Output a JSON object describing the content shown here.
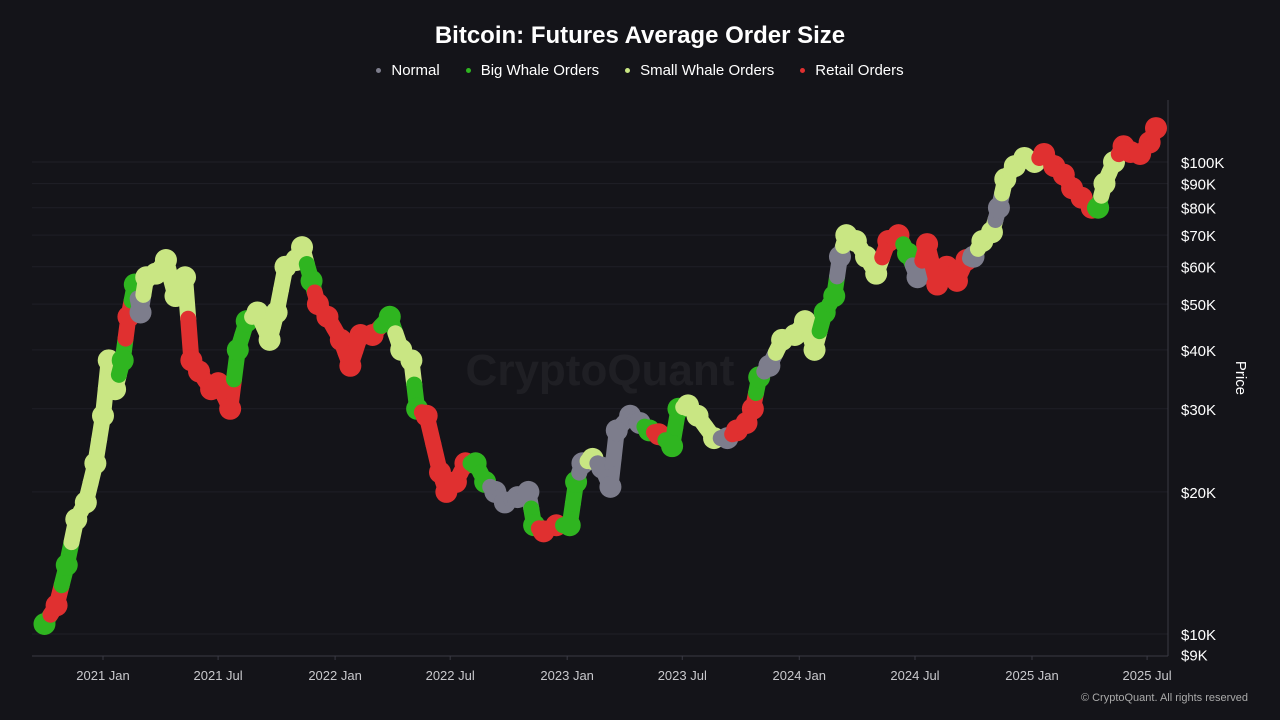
{
  "chart_data": {
    "type": "scatter",
    "title": "Bitcoin: Futures Average Order Size",
    "ylabel": "Price",
    "yscale": "log",
    "ylim": [
      9000,
      135000
    ],
    "xlim": [
      "2020-09-25",
      "2025-07-25"
    ],
    "grid": true,
    "legend_position": "top",
    "x_ticks": [
      "2021 Jan",
      "2021 Jul",
      "2022 Jan",
      "2022 Jul",
      "2023 Jan",
      "2023 Jul",
      "2024 Jan",
      "2024 Jul",
      "2025 Jan",
      "2025 Jul"
    ],
    "x_tick_dates": [
      "2021-01-01",
      "2021-07-01",
      "2022-01-01",
      "2022-07-01",
      "2023-01-01",
      "2023-07-01",
      "2024-01-01",
      "2024-07-01",
      "2025-01-01",
      "2025-07-01"
    ],
    "y_ticks": [
      {
        "label": "$100K",
        "value": 100000
      },
      {
        "label": "$90K",
        "value": 90000
      },
      {
        "label": "$80K",
        "value": 80000
      },
      {
        "label": "$70K",
        "value": 70000
      },
      {
        "label": "$60K",
        "value": 60000
      },
      {
        "label": "$50K",
        "value": 50000
      },
      {
        "label": "$40K",
        "value": 40000
      },
      {
        "label": "$30K",
        "value": 30000
      },
      {
        "label": "$20K",
        "value": 20000
      },
      {
        "label": "$10K",
        "value": 10000
      },
      {
        "label": "$9K",
        "value": 9000
      }
    ],
    "series": [
      {
        "key": "N",
        "name": "Normal",
        "color": "#7d7d8c"
      },
      {
        "key": "B",
        "name": "Big Whale Orders",
        "color": "#2fb520"
      },
      {
        "key": "S",
        "name": "Small Whale Orders",
        "color": "#c9e683"
      },
      {
        "key": "R",
        "name": "Retail Orders",
        "color": "#e03030"
      }
    ],
    "points": [
      [
        "2020-10-01",
        10500,
        "B"
      ],
      [
        "2020-10-20",
        11500,
        "R"
      ],
      [
        "2020-11-05",
        14000,
        "B"
      ],
      [
        "2020-11-20",
        17500,
        "S"
      ],
      [
        "2020-12-05",
        19000,
        "S"
      ],
      [
        "2020-12-20",
        23000,
        "S"
      ],
      [
        "2021-01-01",
        29000,
        "S"
      ],
      [
        "2021-01-10",
        38000,
        "S"
      ],
      [
        "2021-01-20",
        33000,
        "S"
      ],
      [
        "2021-02-01",
        38000,
        "B"
      ],
      [
        "2021-02-10",
        47000,
        "R"
      ],
      [
        "2021-02-20",
        55000,
        "B"
      ],
      [
        "2021-03-01",
        48000,
        "N"
      ],
      [
        "2021-03-10",
        57000,
        "S"
      ],
      [
        "2021-03-25",
        58000,
        "S"
      ],
      [
        "2021-04-10",
        62000,
        "S"
      ],
      [
        "2021-04-25",
        52000,
        "S"
      ],
      [
        "2021-05-10",
        57000,
        "S"
      ],
      [
        "2021-05-20",
        38000,
        "R"
      ],
      [
        "2021-06-01",
        36000,
        "R"
      ],
      [
        "2021-06-20",
        33000,
        "R"
      ],
      [
        "2021-07-01",
        34000,
        "R"
      ],
      [
        "2021-07-20",
        30000,
        "R"
      ],
      [
        "2021-08-01",
        40000,
        "B"
      ],
      [
        "2021-08-15",
        46000,
        "B"
      ],
      [
        "2021-09-01",
        48000,
        "S"
      ],
      [
        "2021-09-20",
        42000,
        "S"
      ],
      [
        "2021-10-01",
        48000,
        "S"
      ],
      [
        "2021-10-15",
        60000,
        "S"
      ],
      [
        "2021-11-01",
        62000,
        "S"
      ],
      [
        "2021-11-10",
        66000,
        "S"
      ],
      [
        "2021-11-25",
        56000,
        "B"
      ],
      [
        "2021-12-05",
        50000,
        "R"
      ],
      [
        "2021-12-20",
        47000,
        "R"
      ],
      [
        "2022-01-10",
        42000,
        "R"
      ],
      [
        "2022-01-25",
        37000,
        "R"
      ],
      [
        "2022-02-10",
        43000,
        "R"
      ],
      [
        "2022-03-01",
        43000,
        "R"
      ],
      [
        "2022-03-28",
        47000,
        "B"
      ],
      [
        "2022-04-15",
        40000,
        "S"
      ],
      [
        "2022-05-01",
        38000,
        "S"
      ],
      [
        "2022-05-10",
        30000,
        "B"
      ],
      [
        "2022-05-25",
        29000,
        "R"
      ],
      [
        "2022-06-15",
        22000,
        "R"
      ],
      [
        "2022-06-25",
        20000,
        "R"
      ],
      [
        "2022-07-10",
        21000,
        "R"
      ],
      [
        "2022-07-25",
        23000,
        "R"
      ],
      [
        "2022-08-10",
        23000,
        "B"
      ],
      [
        "2022-08-25",
        21000,
        "B"
      ],
      [
        "2022-09-10",
        20000,
        "N"
      ],
      [
        "2022-09-25",
        19000,
        "N"
      ],
      [
        "2022-10-15",
        19500,
        "N"
      ],
      [
        "2022-11-01",
        20000,
        "N"
      ],
      [
        "2022-11-10",
        17000,
        "B"
      ],
      [
        "2022-11-25",
        16500,
        "R"
      ],
      [
        "2022-12-15",
        17000,
        "R"
      ],
      [
        "2023-01-05",
        17000,
        "B"
      ],
      [
        "2023-01-15",
        21000,
        "B"
      ],
      [
        "2023-01-25",
        23000,
        "N"
      ],
      [
        "2023-02-10",
        23500,
        "S"
      ],
      [
        "2023-02-25",
        22500,
        "N"
      ],
      [
        "2023-03-10",
        20500,
        "N"
      ],
      [
        "2023-03-20",
        27000,
        "N"
      ],
      [
        "2023-04-10",
        29000,
        "N"
      ],
      [
        "2023-04-25",
        28000,
        "N"
      ],
      [
        "2023-05-10",
        27000,
        "B"
      ],
      [
        "2023-05-25",
        26500,
        "R"
      ],
      [
        "2023-06-15",
        25000,
        "B"
      ],
      [
        "2023-06-25",
        30000,
        "B"
      ],
      [
        "2023-07-10",
        30500,
        "S"
      ],
      [
        "2023-07-25",
        29000,
        "S"
      ],
      [
        "2023-08-20",
        26000,
        "S"
      ],
      [
        "2023-09-10",
        26000,
        "N"
      ],
      [
        "2023-09-25",
        27000,
        "R"
      ],
      [
        "2023-10-10",
        28000,
        "R"
      ],
      [
        "2023-10-20",
        30000,
        "R"
      ],
      [
        "2023-10-30",
        35000,
        "B"
      ],
      [
        "2023-11-15",
        37000,
        "N"
      ],
      [
        "2023-12-05",
        42000,
        "S"
      ],
      [
        "2023-12-25",
        43000,
        "S"
      ],
      [
        "2024-01-10",
        46000,
        "S"
      ],
      [
        "2024-01-25",
        40000,
        "S"
      ],
      [
        "2024-02-10",
        48000,
        "B"
      ],
      [
        "2024-02-25",
        52000,
        "B"
      ],
      [
        "2024-03-05",
        63000,
        "N"
      ],
      [
        "2024-03-15",
        70000,
        "S"
      ],
      [
        "2024-03-30",
        68000,
        "S"
      ],
      [
        "2024-04-15",
        63000,
        "S"
      ],
      [
        "2024-05-01",
        58000,
        "S"
      ],
      [
        "2024-05-20",
        68000,
        "R"
      ],
      [
        "2024-06-05",
        70000,
        "R"
      ],
      [
        "2024-06-20",
        64000,
        "B"
      ],
      [
        "2024-07-05",
        57000,
        "N"
      ],
      [
        "2024-07-20",
        67000,
        "R"
      ],
      [
        "2024-08-05",
        55000,
        "R"
      ],
      [
        "2024-08-20",
        60000,
        "R"
      ],
      [
        "2024-09-05",
        56000,
        "R"
      ],
      [
        "2024-09-20",
        62000,
        "R"
      ],
      [
        "2024-10-01",
        63000,
        "N"
      ],
      [
        "2024-10-15",
        68000,
        "S"
      ],
      [
        "2024-10-30",
        71000,
        "S"
      ],
      [
        "2024-11-10",
        80000,
        "N"
      ],
      [
        "2024-11-20",
        92000,
        "S"
      ],
      [
        "2024-12-05",
        98000,
        "S"
      ],
      [
        "2024-12-20",
        102000,
        "S"
      ],
      [
        "2025-01-05",
        100000,
        "S"
      ],
      [
        "2025-01-20",
        104000,
        "R"
      ],
      [
        "2025-02-05",
        98000,
        "R"
      ],
      [
        "2025-02-20",
        94000,
        "R"
      ],
      [
        "2025-03-05",
        88000,
        "R"
      ],
      [
        "2025-03-20",
        84000,
        "R"
      ],
      [
        "2025-04-05",
        80000,
        "R"
      ],
      [
        "2025-04-15",
        80000,
        "B"
      ],
      [
        "2025-04-25",
        90000,
        "S"
      ],
      [
        "2025-05-10",
        100000,
        "S"
      ],
      [
        "2025-05-25",
        108000,
        "R"
      ],
      [
        "2025-06-05",
        105000,
        "R"
      ],
      [
        "2025-06-20",
        104000,
        "R"
      ],
      [
        "2025-07-05",
        110000,
        "R"
      ],
      [
        "2025-07-15",
        118000,
        "R"
      ]
    ]
  },
  "watermark": "CryptoQuant",
  "copyright": "© CryptoQuant. All rights reserved"
}
